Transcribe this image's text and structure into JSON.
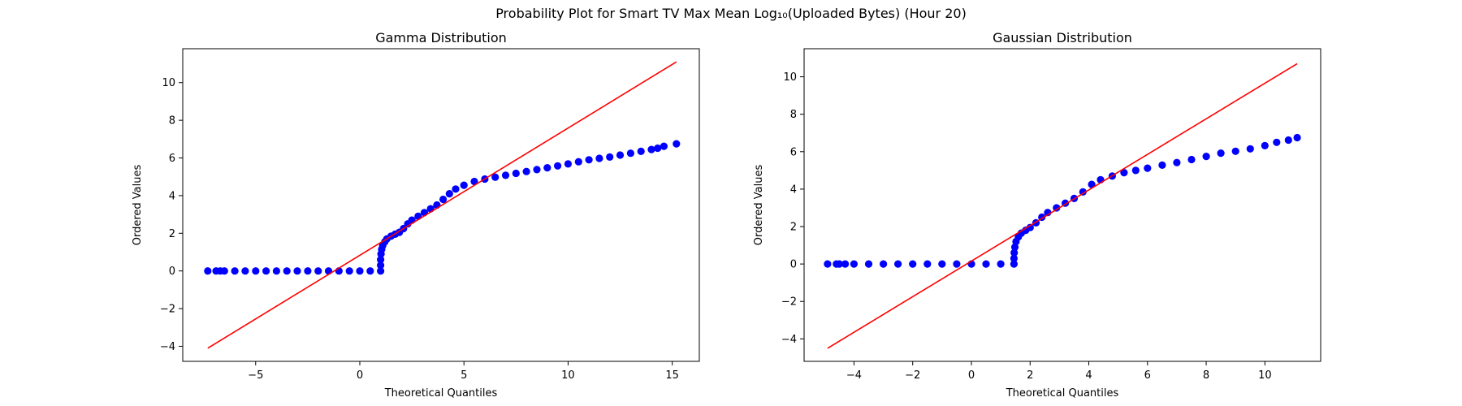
{
  "figure": {
    "title": "Probability Plot for Smart TV Max Mean Log₁₀(Uploaded Bytes) (Hour 20)"
  },
  "chart_data": [
    {
      "type": "scatter",
      "id": "gamma",
      "title": "Gamma Distribution",
      "xlabel": "Theoretical Quantiles",
      "ylabel": "Ordered Values",
      "xlim": [
        -8.5,
        16.3
      ],
      "ylim": [
        -4.8,
        11.8
      ],
      "xticks": [
        -5,
        0,
        5,
        10,
        15
      ],
      "yticks": [
        -4,
        -2,
        0,
        2,
        4,
        6,
        8,
        10
      ],
      "grid": false,
      "point_color": "#0000ff",
      "line_color": "#ff0000",
      "fit_line": {
        "x": [
          -7.3,
          15.2
        ],
        "y": [
          -4.1,
          11.1
        ]
      },
      "points": [
        [
          -7.3,
          0.0
        ],
        [
          -6.9,
          0.0
        ],
        [
          -6.7,
          0.0
        ],
        [
          -6.5,
          0.0
        ],
        [
          -6.0,
          0.0
        ],
        [
          -5.5,
          0.0
        ],
        [
          -5.0,
          0.0
        ],
        [
          -4.5,
          0.0
        ],
        [
          -4.0,
          0.0
        ],
        [
          -3.5,
          0.0
        ],
        [
          -3.0,
          0.0
        ],
        [
          -2.5,
          0.0
        ],
        [
          -2.0,
          0.0
        ],
        [
          -1.5,
          0.0
        ],
        [
          -1.0,
          0.0
        ],
        [
          -0.5,
          0.0
        ],
        [
          0.0,
          0.0
        ],
        [
          0.5,
          0.0
        ],
        [
          1.0,
          0.0
        ],
        [
          1.0,
          0.3
        ],
        [
          1.0,
          0.6
        ],
        [
          1.02,
          0.9
        ],
        [
          1.05,
          1.15
        ],
        [
          1.1,
          1.35
        ],
        [
          1.2,
          1.55
        ],
        [
          1.3,
          1.7
        ],
        [
          1.5,
          1.85
        ],
        [
          1.7,
          1.95
        ],
        [
          1.9,
          2.05
        ],
        [
          2.1,
          2.25
        ],
        [
          2.3,
          2.5
        ],
        [
          2.5,
          2.7
        ],
        [
          2.8,
          2.9
        ],
        [
          3.1,
          3.1
        ],
        [
          3.4,
          3.3
        ],
        [
          3.7,
          3.5
        ],
        [
          4.0,
          3.8
        ],
        [
          4.3,
          4.1
        ],
        [
          4.6,
          4.35
        ],
        [
          5.0,
          4.55
        ],
        [
          5.5,
          4.75
        ],
        [
          6.0,
          4.88
        ],
        [
          6.5,
          4.98
        ],
        [
          7.0,
          5.08
        ],
        [
          7.5,
          5.18
        ],
        [
          8.0,
          5.28
        ],
        [
          8.5,
          5.38
        ],
        [
          9.0,
          5.48
        ],
        [
          9.5,
          5.58
        ],
        [
          10.0,
          5.68
        ],
        [
          10.5,
          5.8
        ],
        [
          11.0,
          5.9
        ],
        [
          11.5,
          5.98
        ],
        [
          12.0,
          6.05
        ],
        [
          12.5,
          6.15
        ],
        [
          13.0,
          6.25
        ],
        [
          13.5,
          6.35
        ],
        [
          14.0,
          6.45
        ],
        [
          14.3,
          6.52
        ],
        [
          14.6,
          6.62
        ],
        [
          15.2,
          6.75
        ]
      ]
    },
    {
      "type": "scatter",
      "id": "gaussian",
      "title": "Gaussian Distribution",
      "xlabel": "Theoretical Quantiles",
      "ylabel": "Ordered Values",
      "xlim": [
        -5.7,
        11.9
      ],
      "ylim": [
        -5.2,
        11.5
      ],
      "xticks": [
        -4,
        -2,
        0,
        2,
        4,
        6,
        8,
        10
      ],
      "yticks": [
        -4,
        -2,
        0,
        2,
        4,
        6,
        8,
        10
      ],
      "grid": false,
      "point_color": "#0000ff",
      "line_color": "#ff0000",
      "fit_line": {
        "x": [
          -4.9,
          11.1
        ],
        "y": [
          -4.5,
          10.7
        ]
      },
      "points": [
        [
          -4.9,
          0.0
        ],
        [
          -4.6,
          0.0
        ],
        [
          -4.5,
          0.0
        ],
        [
          -4.3,
          0.0
        ],
        [
          -4.0,
          0.0
        ],
        [
          -3.5,
          0.0
        ],
        [
          -3.0,
          0.0
        ],
        [
          -2.5,
          0.0
        ],
        [
          -2.0,
          0.0
        ],
        [
          -1.5,
          0.0
        ],
        [
          -1.0,
          0.0
        ],
        [
          -0.5,
          0.0
        ],
        [
          0.0,
          0.0
        ],
        [
          0.5,
          0.0
        ],
        [
          1.0,
          0.0
        ],
        [
          1.45,
          0.0
        ],
        [
          1.45,
          0.3
        ],
        [
          1.46,
          0.6
        ],
        [
          1.48,
          0.9
        ],
        [
          1.52,
          1.2
        ],
        [
          1.6,
          1.45
        ],
        [
          1.7,
          1.65
        ],
        [
          1.85,
          1.8
        ],
        [
          2.0,
          1.95
        ],
        [
          2.2,
          2.2
        ],
        [
          2.4,
          2.5
        ],
        [
          2.6,
          2.75
        ],
        [
          2.9,
          3.0
        ],
        [
          3.2,
          3.25
        ],
        [
          3.5,
          3.5
        ],
        [
          3.8,
          3.85
        ],
        [
          4.1,
          4.25
        ],
        [
          4.4,
          4.5
        ],
        [
          4.8,
          4.7
        ],
        [
          5.2,
          4.88
        ],
        [
          5.6,
          5.0
        ],
        [
          6.0,
          5.12
        ],
        [
          6.5,
          5.28
        ],
        [
          7.0,
          5.42
        ],
        [
          7.5,
          5.58
        ],
        [
          8.0,
          5.75
        ],
        [
          8.5,
          5.92
        ],
        [
          9.0,
          6.02
        ],
        [
          9.5,
          6.15
        ],
        [
          10.0,
          6.32
        ],
        [
          10.4,
          6.5
        ],
        [
          10.8,
          6.62
        ],
        [
          11.1,
          6.75
        ]
      ]
    }
  ]
}
